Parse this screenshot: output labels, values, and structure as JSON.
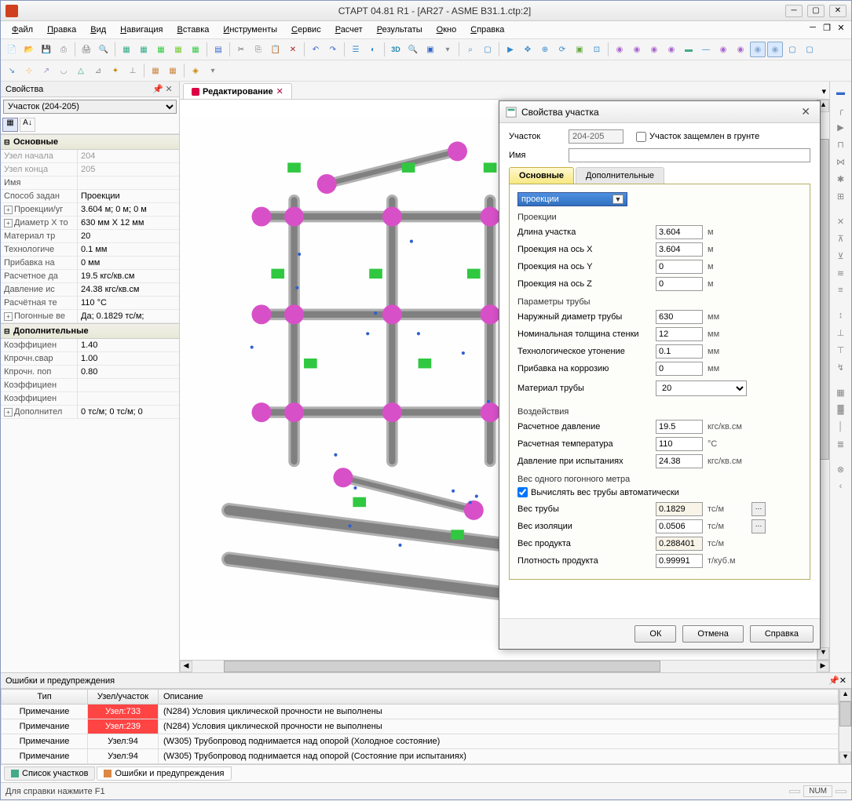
{
  "window": {
    "title": "СТАРТ 04.81 R1 - [AR27 - ASME B31.1.ctp:2]",
    "min": "─",
    "max": "▢",
    "restore": "❐",
    "close": "✕"
  },
  "menu": {
    "items": [
      "Файл",
      "Правка",
      "Вид",
      "Навигация",
      "Вставка",
      "Инструменты",
      "Сервис",
      "Расчет",
      "Результаты",
      "Окно",
      "Справка"
    ]
  },
  "toolbar1": {
    "icons": [
      {
        "g": "📄",
        "c": "#5a8"
      },
      {
        "g": "📂",
        "c": "#fa4"
      },
      {
        "g": "💾",
        "c": "#36c"
      },
      {
        "g": "⎙",
        "c": "#888"
      },
      {
        "sep": 1
      },
      {
        "g": "🖨",
        "c": "#666"
      },
      {
        "g": "🔍",
        "c": "#666"
      },
      {
        "sep": 1
      },
      {
        "g": "▦",
        "c": "#3a8"
      },
      {
        "g": "▦",
        "c": "#3a8"
      },
      {
        "g": "▦",
        "c": "#3c4"
      },
      {
        "g": "▦",
        "c": "#7c3"
      },
      {
        "g": "▦",
        "c": "#3c4"
      },
      {
        "sep": 1
      },
      {
        "g": "▤",
        "c": "#36c"
      },
      {
        "sep": 1
      },
      {
        "g": "✂",
        "c": "#666"
      },
      {
        "g": "⎘",
        "c": "#666"
      },
      {
        "g": "📋",
        "c": "#666"
      },
      {
        "g": "✕",
        "c": "#a22"
      },
      {
        "sep": 1
      },
      {
        "g": "↶",
        "c": "#36c"
      },
      {
        "g": "↷",
        "c": "#36c"
      },
      {
        "sep": 1
      },
      {
        "g": "☰",
        "c": "#38c"
      },
      {
        "g": "◐",
        "c": "#38c"
      },
      {
        "sep": 1
      },
      {
        "g": "3D",
        "c": "#28a",
        "b": 1
      },
      {
        "g": "🔍",
        "c": "#36c"
      },
      {
        "g": "▣",
        "c": "#36c"
      },
      {
        "g": "▾",
        "c": "#888"
      },
      {
        "sep": 1
      },
      {
        "g": "⌕",
        "c": "#38c"
      },
      {
        "g": "▢",
        "c": "#38c"
      },
      {
        "sep": 1
      },
      {
        "g": "▶",
        "c": "#38c"
      },
      {
        "g": "✥",
        "c": "#38c"
      },
      {
        "g": "⊕",
        "c": "#38c"
      },
      {
        "g": "⟳",
        "c": "#38c"
      },
      {
        "g": "▣",
        "c": "#6a4"
      },
      {
        "g": "⊡",
        "c": "#38c"
      },
      {
        "sep": 1
      },
      {
        "g": "◉",
        "c": "#a6c"
      },
      {
        "g": "◉",
        "c": "#a6c"
      },
      {
        "g": "◉",
        "c": "#a6c"
      },
      {
        "g": "◉",
        "c": "#a6c"
      },
      {
        "g": "▬",
        "c": "#4a8"
      },
      {
        "g": "—",
        "c": "#38c"
      },
      {
        "g": "◉",
        "c": "#a6c"
      },
      {
        "g": "◉",
        "c": "#a6c"
      },
      {
        "g": "◉",
        "c": "#8ac",
        "hl": 1
      },
      {
        "g": "◉",
        "c": "#8ac",
        "hl": 1
      },
      {
        "g": "▢",
        "c": "#38c"
      },
      {
        "g": "▢",
        "c": "#38c"
      }
    ]
  },
  "toolbar2": {
    "icons": [
      {
        "g": "↘",
        "c": "#38c"
      },
      {
        "g": "⊹",
        "c": "#fa4"
      },
      {
        "g": "↗",
        "c": "#a8c"
      },
      {
        "g": "◡",
        "c": "#888"
      },
      {
        "g": "△",
        "c": "#3a8"
      },
      {
        "g": "⊿",
        "c": "#888"
      },
      {
        "g": "✦",
        "c": "#c80"
      },
      {
        "g": "⊥",
        "c": "#888"
      },
      {
        "sep": 1
      },
      {
        "g": "▦",
        "c": "#c84"
      },
      {
        "g": "▦",
        "c": "#c84"
      },
      {
        "sep": 1
      },
      {
        "g": "◈",
        "c": "#c80"
      },
      {
        "g": "▾",
        "c": "#888"
      }
    ]
  },
  "props_panel": {
    "title": "Свойства",
    "selector": "Участок (204-205)",
    "groups": [
      {
        "name": "Основные",
        "rows": [
          {
            "k": "Узел начала",
            "v": "204",
            "ro": 1
          },
          {
            "k": "Узел конца",
            "v": "205",
            "ro": 1
          },
          {
            "k": "Имя",
            "v": ""
          },
          {
            "k": "Способ задан",
            "v": "Проекции"
          },
          {
            "k": "Проекции/уг",
            "v": "3.604 м; 0 м; 0 м",
            "exp": 1
          },
          {
            "k": "Диаметр X то",
            "v": "630 мм X 12 мм",
            "exp": 1
          },
          {
            "k": "Материал тр",
            "v": "20"
          },
          {
            "k": "Технологиче",
            "v": "0.1 мм"
          },
          {
            "k": "Прибавка на",
            "v": "0 мм"
          },
          {
            "k": "Расчетное да",
            "v": "19.5 кгс/кв.см"
          },
          {
            "k": "Давление ис",
            "v": "24.38 кгс/кв.см"
          },
          {
            "k": "Расчётная те",
            "v": "110 °C"
          },
          {
            "k": "Погонные ве",
            "v": "Да; 0.1829 тс/м;",
            "exp": 1
          }
        ]
      },
      {
        "name": "Дополнительные",
        "rows": [
          {
            "k": "Коэффициен",
            "v": "1.40"
          },
          {
            "k": "Кпрочн.свар",
            "v": "1.00"
          },
          {
            "k": "Кпрочн. поп",
            "v": "0.80"
          },
          {
            "k": "Коэффициен",
            "v": ""
          },
          {
            "k": "Коэффициен",
            "v": ""
          },
          {
            "k": "Дополнител",
            "v": "0 тс/м; 0 тс/м; 0",
            "exp": 1
          }
        ]
      }
    ]
  },
  "doc_tab": {
    "label": "Редактирование"
  },
  "dialog": {
    "title": "Свойства участка",
    "section_label": "Участок",
    "section_value": "204-205",
    "grounded_label": "Участок защемлен в грунте",
    "name_label": "Имя",
    "name_value": "",
    "tabs": [
      "Основные",
      "Дополнительные"
    ],
    "method": "проекции",
    "sec_proj": "Проекции",
    "rows_proj": [
      {
        "l": "Длина участка",
        "v": "3.604",
        "u": "м"
      },
      {
        "l": "Проекция на ось X",
        "v": "3.604",
        "u": "м"
      },
      {
        "l": "Проекция на ось Y",
        "v": "0",
        "u": "м"
      },
      {
        "l": "Проекция на ось Z",
        "v": "0",
        "u": "м"
      }
    ],
    "sec_pipe": "Параметры трубы",
    "rows_pipe": [
      {
        "l": "Наружный диаметр трубы",
        "v": "630",
        "u": "мм"
      },
      {
        "l": "Номинальная толщина стенки",
        "v": "12",
        "u": "мм"
      },
      {
        "l": "Технологическое утонение",
        "v": "0.1",
        "u": "мм"
      },
      {
        "l": "Прибавка на коррозию",
        "v": "0",
        "u": "мм"
      }
    ],
    "material_label": "Материал трубы",
    "material_value": "20",
    "sec_load": "Воздействия",
    "rows_load": [
      {
        "l": "Расчетное давление",
        "v": "19.5",
        "u": "кгс/кв.см"
      },
      {
        "l": "Расчетная температура",
        "v": "110",
        "u": "°C"
      },
      {
        "l": "Давление при испытаниях",
        "v": "24.38",
        "u": "кгс/кв.см"
      }
    ],
    "sec_weight": "Вес одного погонного метра",
    "auto_weight_label": "Вычислять вес трубы автоматически",
    "rows_weight": [
      {
        "l": "Вес трубы",
        "v": "0.1829",
        "u": "тс/м",
        "ro": 1,
        "btn": 1
      },
      {
        "l": "Вес изоляции",
        "v": "0.0506",
        "u": "тс/м",
        "btn": 1
      },
      {
        "l": "Вес продукта",
        "v": "0.288401",
        "u": "тс/м",
        "ro": 1
      },
      {
        "l": "Плотность продукта",
        "v": "0.99991",
        "u": "т/куб.м"
      }
    ],
    "btns": {
      "ok": "ОК",
      "cancel": "Отмена",
      "help": "Справка"
    }
  },
  "errors_panel": {
    "title": "Ошибки и предупреждения",
    "cols": [
      "Тип",
      "Узел/участок",
      "Описание"
    ],
    "rows": [
      {
        "t": "Примечание",
        "n": "Узел:733",
        "d": "(N284) Условия циклической прочности не выполнены",
        "red": 1
      },
      {
        "t": "Примечание",
        "n": "Узел:239",
        "d": "(N284) Условия циклической прочности не выполнены",
        "red": 1
      },
      {
        "t": "Примечание",
        "n": "Узел:94",
        "d": "(W305) Трубопровод поднимается над опорой (Холодное состояние)"
      },
      {
        "t": "Примечание",
        "n": "Узел:94",
        "d": "(W305) Трубопровод поднимается над опорой (Состояние при испытаниях)"
      }
    ],
    "tabs": [
      "Список участков",
      "Ошибки и предупреждения"
    ]
  },
  "statusbar": {
    "help": "Для справки нажмите F1",
    "num": "NUM"
  },
  "right_rail": {
    "icons": [
      {
        "g": "▬",
        "c": "#36c"
      },
      {
        "g": "╭",
        "c": "#888"
      },
      {
        "g": "▶",
        "c": "#888"
      },
      {
        "g": "⊓",
        "c": "#888"
      },
      {
        "g": "⋈",
        "c": "#888"
      },
      {
        "g": "✱",
        "c": "#888"
      },
      {
        "g": "⊞",
        "c": "#888"
      },
      {
        "sep": 1
      },
      {
        "g": "✕",
        "c": "#888"
      },
      {
        "g": "⊼",
        "c": "#888"
      },
      {
        "g": "⊻",
        "c": "#888"
      },
      {
        "g": "≋",
        "c": "#888"
      },
      {
        "g": "≡",
        "c": "#888"
      },
      {
        "sep": 1
      },
      {
        "g": "↕",
        "c": "#888"
      },
      {
        "g": "⊥",
        "c": "#888"
      },
      {
        "g": "⊤",
        "c": "#888"
      },
      {
        "g": "↯",
        "c": "#888"
      },
      {
        "sep": 1
      },
      {
        "g": "▦",
        "c": "#888"
      },
      {
        "g": "▓",
        "c": "#888"
      },
      {
        "g": "│",
        "c": "#888"
      },
      {
        "g": "≣",
        "c": "#888"
      },
      {
        "sep": 1
      },
      {
        "g": "⊗",
        "c": "#888"
      },
      {
        "g": "‹",
        "c": "#888"
      }
    ]
  },
  "viewport_3d": {
    "bg": "#fefefe",
    "pipe_colors": {
      "main": "#b0b0b0",
      "hl": "#808080",
      "elbow": "#d850c8",
      "support": "#30c840",
      "dot": "#3060d0"
    }
  }
}
